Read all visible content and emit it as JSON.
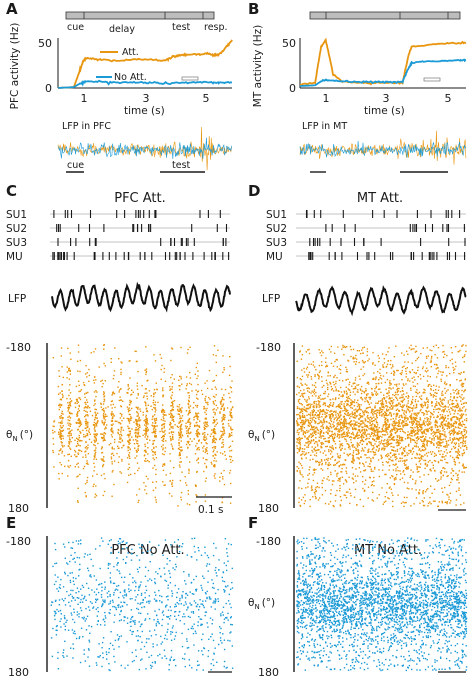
{
  "colors": {
    "att": "#e8960f",
    "noatt": "#1a9ad6",
    "dark": "#1a1a1a",
    "bar_fill": "#bdbdbd"
  },
  "panel_letters": [
    "A",
    "B",
    "C",
    "D",
    "E",
    "F"
  ],
  "panel_a": {
    "epochs": [
      "cue",
      "delay",
      "test",
      "resp."
    ],
    "ylabel": "PFC activity (Hz)",
    "xlabel": "time (s)",
    "yticks": [
      "50",
      "0"
    ],
    "xticks": [
      "1",
      "3",
      "5"
    ],
    "legend": [
      "Att.",
      "No Att."
    ],
    "lfp_label": "LFP in PFC",
    "lfp_marks": [
      "cue",
      "test"
    ]
  },
  "panel_b": {
    "ylabel": "MT activity (Hz)",
    "xlabel": "time (s)",
    "yticks": [
      "50",
      "0"
    ],
    "xticks": [
      "1",
      "3",
      "5"
    ],
    "lfp_label": "LFP in MT"
  },
  "panel_c": {
    "title": "PFC Att.",
    "units": [
      "SU1",
      "SU2",
      "SU3",
      "MU"
    ],
    "lfp": "LFP",
    "theta_label_main": "θ",
    "theta_label_sub": "N",
    "theta_label_unit": "(°)",
    "y_top": "-180",
    "y_bottom": "180",
    "scalebar": "0.1 s"
  },
  "panel_d": {
    "title": "MT Att.",
    "units": [
      "SU1",
      "SU2",
      "SU3",
      "MU"
    ],
    "lfp": "LFP",
    "y_top": "-180",
    "y_bottom": "180"
  },
  "panel_e": {
    "title": "PFC No Att.",
    "y_top": "-180",
    "y_bottom": "180"
  },
  "panel_f": {
    "title": "MT No Att.",
    "y_top": "-180",
    "y_bottom": "180"
  },
  "chart_data": [
    {
      "type": "line",
      "panel": "A",
      "ylabel": "PFC activity (Hz)",
      "xlabel": "time (s)",
      "xlim": [
        0.1,
        5.6
      ],
      "ylim": [
        0,
        55
      ],
      "series": [
        {
          "name": "Att.",
          "x": [
            0.1,
            0.6,
            0.8,
            0.9,
            1.0,
            1.2,
            1.5,
            2.0,
            2.5,
            3.0,
            3.5,
            3.7,
            3.9,
            4.2,
            4.5,
            4.8,
            5.0,
            5.2,
            5.4,
            5.6
          ],
          "y": [
            0,
            1,
            20,
            30,
            33,
            32,
            31,
            30,
            31,
            32,
            30,
            34,
            36,
            37,
            37,
            38,
            36,
            37,
            44,
            53
          ]
        },
        {
          "name": "No Att.",
          "x": [
            0.1,
            0.6,
            0.8,
            1.0,
            1.5,
            2.0,
            2.5,
            3.0,
            3.5,
            4.0,
            4.5,
            5.0,
            5.2,
            5.6
          ],
          "y": [
            0,
            1,
            5,
            7,
            7,
            6,
            6,
            6,
            5,
            6,
            6,
            6,
            6,
            6
          ]
        }
      ]
    },
    {
      "type": "line",
      "panel": "B",
      "ylabel": "MT activity (Hz)",
      "xlabel": "time (s)",
      "xlim": [
        0.1,
        5.6
      ],
      "ylim": [
        0,
        75
      ],
      "series": [
        {
          "name": "Att.",
          "x": [
            0.1,
            0.6,
            0.8,
            0.95,
            1.05,
            1.2,
            1.5,
            2.0,
            2.5,
            3.0,
            3.5,
            3.7,
            3.8,
            4.2,
            4.8,
            5.4,
            5.6
          ],
          "y": [
            5,
            8,
            62,
            72,
            52,
            20,
            10,
            8,
            8,
            8,
            8,
            50,
            62,
            64,
            66,
            68,
            68
          ]
        },
        {
          "name": "No Att.",
          "x": [
            0.1,
            0.6,
            0.8,
            1.0,
            1.5,
            2.0,
            2.5,
            3.0,
            3.5,
            3.7,
            3.8,
            4.2,
            4.8,
            5.4,
            5.6
          ],
          "y": [
            3,
            4,
            10,
            12,
            10,
            9,
            9,
            9,
            9,
            30,
            38,
            40,
            40,
            42,
            42
          ]
        }
      ]
    }
  ]
}
